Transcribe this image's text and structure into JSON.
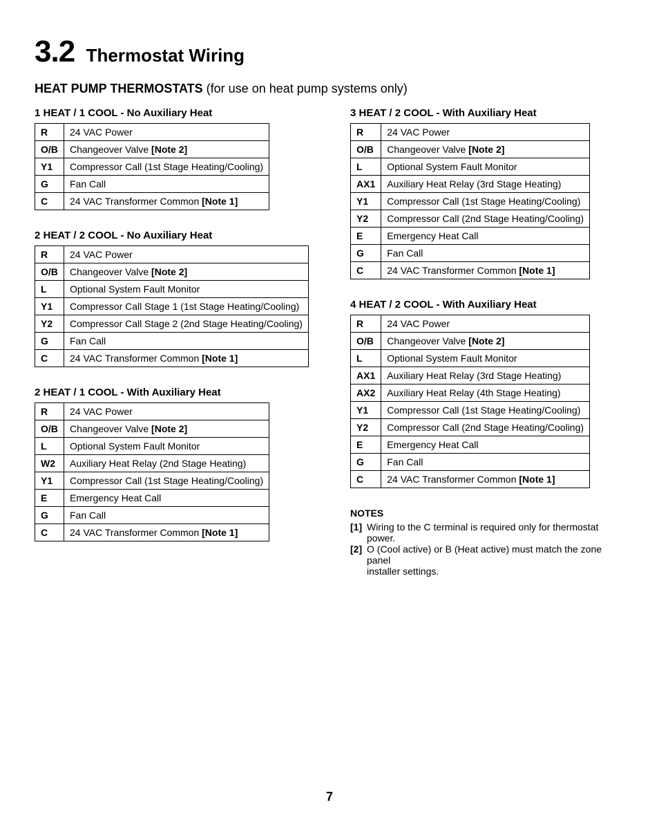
{
  "header": {
    "section_number": "3.2",
    "section_title": "Thermostat Wiring",
    "sub_bold": "HEAT PUMP THERMOSTATS",
    "sub_rest": " (for use on heat pump systems only)"
  },
  "tables": {
    "t1": {
      "title": "1 HEAT / 1 COOL - No Auxiliary Heat",
      "rows": [
        {
          "term": "R",
          "desc": "24 VAC Power",
          "note": ""
        },
        {
          "term": "O/B",
          "desc": "Changeover Valve ",
          "note": "[Note 2]"
        },
        {
          "term": "Y1",
          "desc": "Compressor Call (1st Stage Heating/Cooling)",
          "note": ""
        },
        {
          "term": "G",
          "desc": "Fan Call",
          "note": ""
        },
        {
          "term": "C",
          "desc": "24 VAC Transformer Common ",
          "note": "[Note 1]"
        }
      ]
    },
    "t2": {
      "title": "2 HEAT / 2 COOL - No Auxiliary Heat",
      "rows": [
        {
          "term": "R",
          "desc": "24 VAC Power",
          "note": ""
        },
        {
          "term": "O/B",
          "desc": "Changeover Valve ",
          "note": "[Note 2]"
        },
        {
          "term": "L",
          "desc": "Optional System Fault Monitor",
          "note": ""
        },
        {
          "term": "Y1",
          "desc": "Compressor Call Stage 1 (1st Stage Heating/Cooling)",
          "note": ""
        },
        {
          "term": "Y2",
          "desc": "Compressor Call Stage 2 (2nd Stage Heating/Cooling)",
          "note": ""
        },
        {
          "term": "G",
          "desc": "Fan Call",
          "note": ""
        },
        {
          "term": "C",
          "desc": "24 VAC Transformer Common ",
          "note": "[Note 1]"
        }
      ]
    },
    "t3": {
      "title": "2 HEAT / 1 COOL - With Auxiliary Heat",
      "rows": [
        {
          "term": "R",
          "desc": "24 VAC Power",
          "note": ""
        },
        {
          "term": "O/B",
          "desc": "Changeover Valve ",
          "note": "[Note 2]"
        },
        {
          "term": "L",
          "desc": "Optional System Fault Monitor",
          "note": ""
        },
        {
          "term": "W2",
          "desc": "Auxiliary Heat Relay (2nd Stage Heating)",
          "note": ""
        },
        {
          "term": "Y1",
          "desc": "Compressor Call (1st Stage Heating/Cooling)",
          "note": ""
        },
        {
          "term": "E",
          "desc": "Emergency Heat Call",
          "note": ""
        },
        {
          "term": "G",
          "desc": "Fan Call",
          "note": ""
        },
        {
          "term": "C",
          "desc": "24 VAC Transformer Common ",
          "note": "[Note 1]"
        }
      ]
    },
    "t4": {
      "title": "3 HEAT / 2 COOL - With Auxiliary Heat",
      "rows": [
        {
          "term": "R",
          "desc": "24 VAC Power",
          "note": ""
        },
        {
          "term": "O/B",
          "desc": "Changeover Valve ",
          "note": "[Note 2]"
        },
        {
          "term": "L",
          "desc": "Optional System Fault Monitor",
          "note": ""
        },
        {
          "term": "AX1",
          "desc": "Auxiliary Heat Relay (3rd Stage Heating)",
          "note": ""
        },
        {
          "term": "Y1",
          "desc": "Compressor Call (1st Stage Heating/Cooling)",
          "note": ""
        },
        {
          "term": "Y2",
          "desc": "Compressor Call (2nd Stage Heating/Cooling)",
          "note": ""
        },
        {
          "term": "E",
          "desc": "Emergency Heat Call",
          "note": ""
        },
        {
          "term": "G",
          "desc": "Fan Call",
          "note": ""
        },
        {
          "term": "C",
          "desc": "24 VAC Transformer Common ",
          "note": "[Note 1]"
        }
      ]
    },
    "t5": {
      "title": "4 HEAT / 2 COOL - With Auxiliary Heat",
      "rows": [
        {
          "term": "R",
          "desc": "24 VAC Power",
          "note": ""
        },
        {
          "term": "O/B",
          "desc": "Changeover Valve ",
          "note": "[Note 2]"
        },
        {
          "term": "L",
          "desc": "Optional System Fault Monitor",
          "note": ""
        },
        {
          "term": "AX1",
          "desc": "Auxiliary Heat Relay (3rd Stage Heating)",
          "note": ""
        },
        {
          "term": "AX2",
          "desc": "Auxiliary Heat Relay (4th Stage Heating)",
          "note": ""
        },
        {
          "term": "Y1",
          "desc": "Compressor Call (1st Stage Heating/Cooling)",
          "note": ""
        },
        {
          "term": "Y2",
          "desc": "Compressor Call (2nd Stage Heating/Cooling)",
          "note": ""
        },
        {
          "term": "E",
          "desc": "Emergency Heat Call",
          "note": ""
        },
        {
          "term": "G",
          "desc": "Fan Call",
          "note": ""
        },
        {
          "term": "C",
          "desc": "24 VAC Transformer Common ",
          "note": "[Note 1]"
        }
      ]
    }
  },
  "notes": {
    "heading": "NOTES",
    "items": [
      {
        "num": "[1]",
        "text": "Wiring to the C terminal is required only for thermostat power."
      },
      {
        "num": "[2]",
        "text": "O (Cool active) or B (Heat active) must match the zone panel",
        "cont": "installer settings."
      }
    ]
  },
  "page_number": "7",
  "style": {
    "text_color": "#000000",
    "background_color": "#ffffff",
    "border_color": "#000000",
    "section_number_fontsize": 44,
    "section_title_fontsize": 26,
    "sub_header_fontsize": 18,
    "table_title_fontsize": 15,
    "cell_fontsize": 14,
    "notes_fontsize": 14,
    "page_num_fontsize": 18
  }
}
